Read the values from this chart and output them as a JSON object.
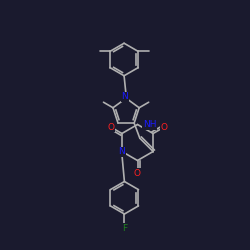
{
  "bg": "#1a1a2e",
  "bc": "#b0b0b0",
  "nc": "#1a1aff",
  "oc": "#ff2020",
  "fc": "#208020",
  "lw": 1.2,
  "dbo": 0.08,
  "fs": 6.5,
  "xlim": [
    0,
    10
  ],
  "ylim": [
    0,
    10
  ]
}
